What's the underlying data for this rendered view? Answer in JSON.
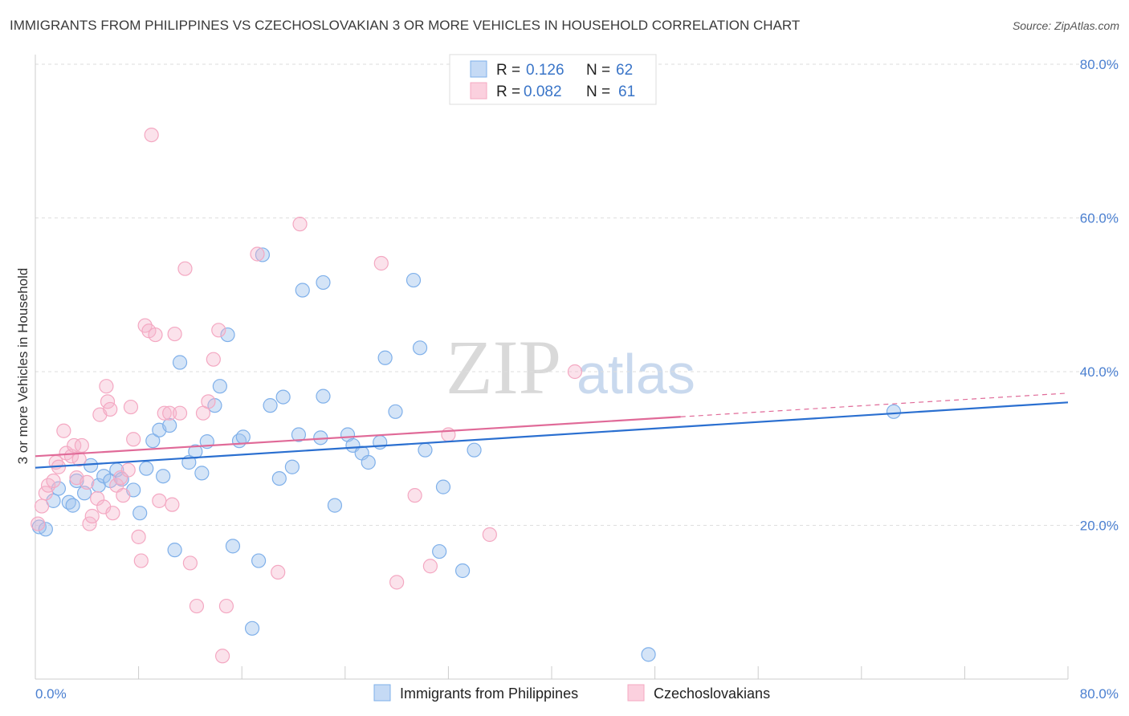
{
  "header": {
    "title": "IMMIGRANTS FROM PHILIPPINES VS CZECHOSLOVAKIAN 3 OR MORE VEHICLES IN HOUSEHOLD CORRELATION CHART",
    "source": "Source: ZipAtlas.com"
  },
  "watermark": {
    "zip": "ZIP",
    "atlas": "atlas"
  },
  "legend": {
    "r_label": "R =",
    "n_label": "N =",
    "series": [
      {
        "r": "0.126",
        "n": "62"
      },
      {
        "r": "0.082",
        "n": "61"
      }
    ]
  },
  "chart_data": {
    "type": "scatter",
    "title": "IMMIGRANTS FROM PHILIPPINES VS CZECHOSLOVAKIAN 3 OR MORE VEHICLES IN HOUSEHOLD CORRELATION CHART",
    "xlabel": "",
    "ylabel": "3 or more Vehicles in Household",
    "xlim": [
      0,
      80
    ],
    "ylim": [
      0,
      80
    ],
    "x_tick_labels": [
      "0.0%",
      "80.0%"
    ],
    "y_ticks": [
      20,
      40,
      60,
      80
    ],
    "y_tick_labels": [
      "20.0%",
      "40.0%",
      "60.0%",
      "80.0%"
    ],
    "grid": true,
    "legend_position": "top-center",
    "series": [
      {
        "name": "Immigrants from Philippines",
        "color": "#7fb0ea",
        "line_color": "#2a6fd0",
        "r": 0.126,
        "n": 62,
        "trend": {
          "x0": 0,
          "y0": 27.5,
          "x1": 80,
          "y1": 36.0,
          "solid_until": 80
        },
        "points": [
          [
            0.3,
            19.8
          ],
          [
            0.8,
            19.5
          ],
          [
            1.4,
            23.2
          ],
          [
            1.8,
            24.8
          ],
          [
            2.6,
            23.0
          ],
          [
            2.9,
            22.6
          ],
          [
            3.2,
            25.8
          ],
          [
            3.8,
            24.2
          ],
          [
            4.3,
            27.8
          ],
          [
            4.9,
            25.2
          ],
          [
            5.3,
            26.4
          ],
          [
            5.8,
            25.8
          ],
          [
            6.3,
            27.2
          ],
          [
            6.7,
            26.0
          ],
          [
            7.6,
            24.6
          ],
          [
            8.1,
            21.6
          ],
          [
            8.6,
            27.4
          ],
          [
            9.1,
            31.0
          ],
          [
            9.6,
            32.4
          ],
          [
            9.9,
            26.4
          ],
          [
            10.4,
            33.0
          ],
          [
            10.8,
            16.8
          ],
          [
            11.2,
            41.2
          ],
          [
            11.9,
            28.2
          ],
          [
            12.4,
            29.6
          ],
          [
            12.9,
            26.8
          ],
          [
            13.3,
            30.9
          ],
          [
            13.9,
            35.6
          ],
          [
            14.3,
            38.1
          ],
          [
            14.9,
            44.8
          ],
          [
            15.3,
            17.3
          ],
          [
            15.8,
            31.0
          ],
          [
            16.1,
            31.5
          ],
          [
            16.8,
            6.6
          ],
          [
            17.3,
            15.4
          ],
          [
            17.6,
            55.2
          ],
          [
            18.2,
            35.6
          ],
          [
            18.9,
            26.1
          ],
          [
            19.2,
            36.7
          ],
          [
            19.9,
            27.6
          ],
          [
            20.4,
            31.8
          ],
          [
            20.7,
            50.6
          ],
          [
            22.1,
            31.4
          ],
          [
            22.3,
            36.8
          ],
          [
            22.3,
            51.6
          ],
          [
            23.2,
            22.6
          ],
          [
            24.2,
            31.8
          ],
          [
            24.6,
            30.4
          ],
          [
            25.3,
            29.4
          ],
          [
            25.8,
            28.2
          ],
          [
            26.7,
            30.8
          ],
          [
            27.1,
            41.8
          ],
          [
            27.9,
            34.8
          ],
          [
            29.3,
            51.9
          ],
          [
            29.8,
            43.1
          ],
          [
            30.2,
            29.8
          ],
          [
            31.3,
            16.6
          ],
          [
            31.6,
            25.0
          ],
          [
            33.1,
            14.1
          ],
          [
            34.0,
            29.8
          ],
          [
            47.5,
            3.2
          ],
          [
            66.5,
            34.8
          ]
        ]
      },
      {
        "name": "Czechoslovakians",
        "color": "#f4a8c2",
        "line_color": "#e06a98",
        "r": 0.082,
        "n": 61,
        "trend": {
          "x0": 0,
          "y0": 29.0,
          "x1": 80,
          "y1": 37.2,
          "solid_until": 50
        },
        "points": [
          [
            0.2,
            20.2
          ],
          [
            0.5,
            22.5
          ],
          [
            0.8,
            24.2
          ],
          [
            1.0,
            25.2
          ],
          [
            1.4,
            25.8
          ],
          [
            1.6,
            28.2
          ],
          [
            1.8,
            27.6
          ],
          [
            2.2,
            32.3
          ],
          [
            2.4,
            29.4
          ],
          [
            2.8,
            29.0
          ],
          [
            3.0,
            30.4
          ],
          [
            3.4,
            28.6
          ],
          [
            3.6,
            30.4
          ],
          [
            4.2,
            20.2
          ],
          [
            4.4,
            21.2
          ],
          [
            4.8,
            23.5
          ],
          [
            5.0,
            34.4
          ],
          [
            5.3,
            22.4
          ],
          [
            5.6,
            36.1
          ],
          [
            5.8,
            35.1
          ],
          [
            6.0,
            21.6
          ],
          [
            6.3,
            25.2
          ],
          [
            6.6,
            26.2
          ],
          [
            6.8,
            23.9
          ],
          [
            7.2,
            27.2
          ],
          [
            7.4,
            35.4
          ],
          [
            7.6,
            31.2
          ],
          [
            8.0,
            18.5
          ],
          [
            8.2,
            15.4
          ],
          [
            8.5,
            46.0
          ],
          [
            8.8,
            45.3
          ],
          [
            9.0,
            70.8
          ],
          [
            9.3,
            44.8
          ],
          [
            9.6,
            23.2
          ],
          [
            10.0,
            34.6
          ],
          [
            10.4,
            34.6
          ],
          [
            10.6,
            22.7
          ],
          [
            10.8,
            44.9
          ],
          [
            11.2,
            34.6
          ],
          [
            11.6,
            53.4
          ],
          [
            12.0,
            15.1
          ],
          [
            12.5,
            9.5
          ],
          [
            13.0,
            34.6
          ],
          [
            13.4,
            36.1
          ],
          [
            13.8,
            41.6
          ],
          [
            14.2,
            45.4
          ],
          [
            14.5,
            3.0
          ],
          [
            14.8,
            9.5
          ],
          [
            17.2,
            55.3
          ],
          [
            18.8,
            13.9
          ],
          [
            20.5,
            59.2
          ],
          [
            26.8,
            54.1
          ],
          [
            28.0,
            12.6
          ],
          [
            29.4,
            23.9
          ],
          [
            30.6,
            14.7
          ],
          [
            32.0,
            31.8
          ],
          [
            35.2,
            18.8
          ],
          [
            41.8,
            40.0
          ],
          [
            5.5,
            38.1
          ],
          [
            3.2,
            26.2
          ],
          [
            4.0,
            25.6
          ]
        ]
      }
    ]
  }
}
